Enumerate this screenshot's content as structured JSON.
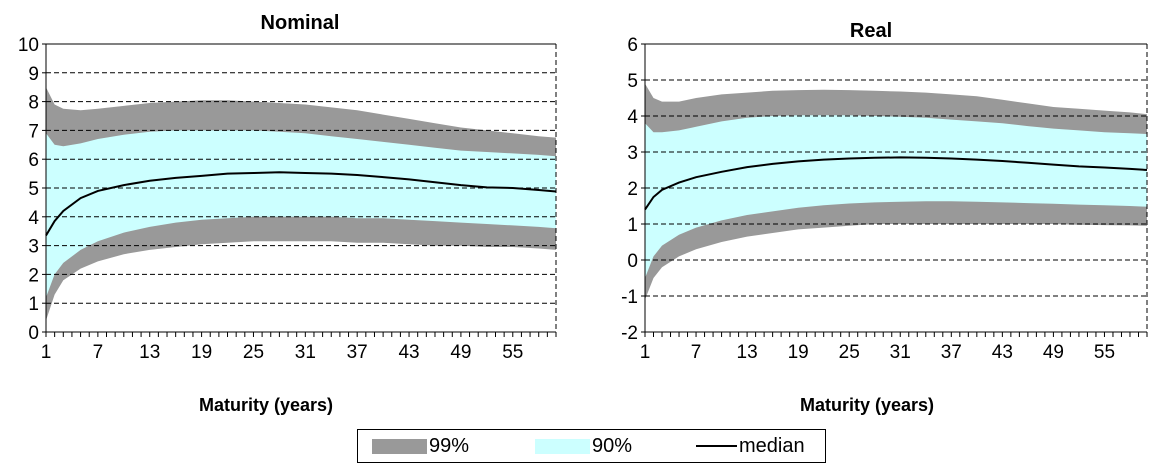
{
  "colors": {
    "band99": "#999999",
    "band90": "#ccffff",
    "median": "#000000",
    "grid": "#000000"
  },
  "legend": {
    "band99": "99%",
    "band90": "90%",
    "median": "median"
  },
  "chart_data": [
    {
      "type": "area",
      "title": "Nominal",
      "xlabel": "Maturity (years)",
      "ylabel": "",
      "xlim": [
        1,
        60
      ],
      "ylim": [
        0,
        10
      ],
      "xticks": [
        1,
        2,
        3,
        4,
        5,
        6,
        7,
        8,
        9,
        10,
        11,
        12,
        13,
        14,
        15,
        16,
        17,
        18,
        19,
        20,
        21,
        22,
        23,
        24,
        25,
        26,
        27,
        28,
        29,
        30,
        31,
        32,
        33,
        34,
        35,
        36,
        37,
        38,
        39,
        40,
        41,
        42,
        43,
        44,
        45,
        46,
        47,
        48,
        49,
        50,
        51,
        52,
        53,
        54,
        55,
        56,
        57,
        58,
        59,
        60
      ],
      "xtick_labels": [
        "1",
        "7",
        "13",
        "19",
        "25",
        "31",
        "37",
        "43",
        "49",
        "55"
      ],
      "yticks": [
        "0",
        "1",
        "2",
        "3",
        "4",
        "5",
        "6",
        "7",
        "8",
        "9",
        "10"
      ],
      "grid": "horizontal",
      "series": [
        {
          "name": "99%",
          "x": [
            1,
            2,
            3,
            5,
            7,
            10,
            13,
            16,
            19,
            22,
            25,
            28,
            31,
            34,
            37,
            40,
            43,
            46,
            49,
            52,
            55,
            58,
            60
          ],
          "upper": [
            8.5,
            7.9,
            7.75,
            7.7,
            7.75,
            7.85,
            7.95,
            8.0,
            8.05,
            8.05,
            8.0,
            7.95,
            7.9,
            7.8,
            7.7,
            7.55,
            7.4,
            7.25,
            7.1,
            7.0,
            6.9,
            6.8,
            6.75
          ],
          "lower": [
            0.4,
            1.3,
            1.8,
            2.2,
            2.45,
            2.7,
            2.85,
            2.95,
            3.05,
            3.1,
            3.15,
            3.15,
            3.15,
            3.15,
            3.1,
            3.1,
            3.05,
            3.0,
            3.0,
            2.95,
            2.95,
            2.9,
            2.85
          ]
        },
        {
          "name": "90%",
          "x": [
            1,
            2,
            3,
            5,
            7,
            10,
            13,
            16,
            19,
            22,
            25,
            28,
            31,
            34,
            37,
            40,
            43,
            46,
            49,
            52,
            55,
            58,
            60
          ],
          "upper": [
            6.9,
            6.5,
            6.45,
            6.55,
            6.7,
            6.85,
            6.95,
            7.0,
            7.0,
            7.0,
            7.0,
            6.95,
            6.9,
            6.8,
            6.7,
            6.6,
            6.5,
            6.4,
            6.3,
            6.25,
            6.2,
            6.15,
            6.1
          ],
          "lower": [
            1.2,
            2.0,
            2.4,
            2.85,
            3.15,
            3.45,
            3.65,
            3.8,
            3.9,
            3.95,
            4.0,
            4.0,
            4.0,
            4.0,
            3.95,
            3.95,
            3.9,
            3.85,
            3.8,
            3.75,
            3.7,
            3.65,
            3.6
          ]
        },
        {
          "name": "median",
          "x": [
            1,
            2,
            3,
            5,
            7,
            10,
            13,
            16,
            19,
            22,
            25,
            28,
            31,
            34,
            37,
            40,
            43,
            46,
            49,
            52,
            55,
            58,
            60
          ],
          "values": [
            3.35,
            3.85,
            4.2,
            4.65,
            4.9,
            5.1,
            5.25,
            5.35,
            5.42,
            5.5,
            5.52,
            5.55,
            5.52,
            5.5,
            5.45,
            5.38,
            5.3,
            5.2,
            5.1,
            5.02,
            5.0,
            4.93,
            4.88
          ]
        }
      ]
    },
    {
      "type": "area",
      "title": "Real",
      "xlabel": "Maturity (years)",
      "ylabel": "",
      "xlim": [
        1,
        60
      ],
      "ylim": [
        -2,
        6
      ],
      "xticks": [
        1,
        2,
        3,
        4,
        5,
        6,
        7,
        8,
        9,
        10,
        11,
        12,
        13,
        14,
        15,
        16,
        17,
        18,
        19,
        20,
        21,
        22,
        23,
        24,
        25,
        26,
        27,
        28,
        29,
        30,
        31,
        32,
        33,
        34,
        35,
        36,
        37,
        38,
        39,
        40,
        41,
        42,
        43,
        44,
        45,
        46,
        47,
        48,
        49,
        50,
        51,
        52,
        53,
        54,
        55,
        56,
        57,
        58,
        59,
        60
      ],
      "xtick_labels": [
        "1",
        "7",
        "13",
        "19",
        "25",
        "31",
        "37",
        "43",
        "49",
        "55"
      ],
      "yticks": [
        "-2",
        "-1",
        "0",
        "1",
        "2",
        "3",
        "4",
        "5",
        "6"
      ],
      "grid": "horizontal",
      "series": [
        {
          "name": "99%",
          "x": [
            1,
            2,
            3,
            5,
            7,
            10,
            13,
            16,
            19,
            22,
            25,
            28,
            31,
            34,
            37,
            40,
            43,
            46,
            49,
            52,
            55,
            58,
            60
          ],
          "upper": [
            4.9,
            4.5,
            4.4,
            4.4,
            4.5,
            4.6,
            4.65,
            4.7,
            4.72,
            4.73,
            4.72,
            4.7,
            4.68,
            4.65,
            4.6,
            4.55,
            4.45,
            4.35,
            4.25,
            4.2,
            4.15,
            4.1,
            4.05
          ],
          "lower": [
            -1.1,
            -0.5,
            -0.2,
            0.1,
            0.3,
            0.5,
            0.65,
            0.75,
            0.85,
            0.9,
            0.95,
            1.0,
            1.0,
            1.0,
            1.0,
            1.0,
            1.0,
            1.0,
            1.0,
            0.98,
            0.97,
            0.96,
            0.95
          ]
        },
        {
          "name": "90%",
          "x": [
            1,
            2,
            3,
            5,
            7,
            10,
            13,
            16,
            19,
            22,
            25,
            28,
            31,
            34,
            37,
            40,
            43,
            46,
            49,
            52,
            55,
            58,
            60
          ],
          "upper": [
            3.8,
            3.55,
            3.55,
            3.6,
            3.7,
            3.85,
            3.95,
            4.0,
            4.02,
            4.02,
            4.02,
            4.0,
            3.98,
            3.95,
            3.9,
            3.85,
            3.8,
            3.72,
            3.65,
            3.6,
            3.55,
            3.52,
            3.5
          ],
          "lower": [
            -0.5,
            0.1,
            0.4,
            0.7,
            0.9,
            1.1,
            1.25,
            1.35,
            1.45,
            1.52,
            1.57,
            1.6,
            1.62,
            1.63,
            1.63,
            1.62,
            1.6,
            1.58,
            1.56,
            1.54,
            1.52,
            1.5,
            1.48
          ]
        },
        {
          "name": "median",
          "x": [
            1,
            2,
            3,
            5,
            7,
            10,
            13,
            16,
            19,
            22,
            25,
            28,
            31,
            34,
            37,
            40,
            43,
            46,
            49,
            52,
            55,
            58,
            60
          ],
          "values": [
            1.4,
            1.75,
            1.95,
            2.15,
            2.3,
            2.45,
            2.58,
            2.67,
            2.74,
            2.79,
            2.82,
            2.84,
            2.85,
            2.84,
            2.82,
            2.79,
            2.75,
            2.7,
            2.65,
            2.6,
            2.57,
            2.53,
            2.5
          ]
        }
      ]
    }
  ]
}
